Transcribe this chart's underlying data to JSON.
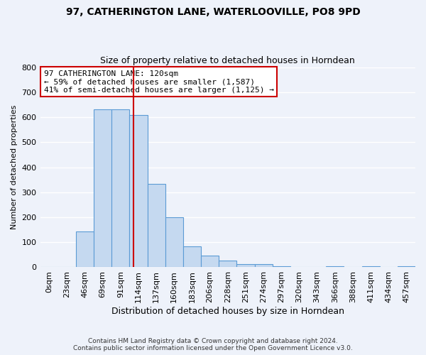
{
  "title": "97, CATHERINGTON LANE, WATERLOOVILLE, PO8 9PD",
  "subtitle": "Size of property relative to detached houses in Horndean",
  "xlabel": "Distribution of detached houses by size in Horndean",
  "ylabel": "Number of detached properties",
  "bar_color": "#c5d9f0",
  "bar_edge_color": "#5b9bd5",
  "background_color": "#eef2fa",
  "grid_color": "#ffffff",
  "categories": [
    "0sqm",
    "23sqm",
    "46sqm",
    "69sqm",
    "91sqm",
    "114sqm",
    "137sqm",
    "160sqm",
    "183sqm",
    "206sqm",
    "228sqm",
    "251sqm",
    "274sqm",
    "297sqm",
    "320sqm",
    "343sqm",
    "366sqm",
    "388sqm",
    "411sqm",
    "434sqm",
    "457sqm"
  ],
  "bar_values": [
    2,
    2,
    143,
    632,
    630,
    610,
    333,
    200,
    84,
    46,
    27,
    12,
    12,
    3,
    0,
    0,
    5,
    0,
    5,
    0,
    3
  ],
  "ylim": [
    0,
    800
  ],
  "yticks": [
    0,
    100,
    200,
    300,
    400,
    500,
    600,
    700,
    800
  ],
  "property_line_label": "97 CATHERINGTON LANE: 120sqm",
  "annotation_line1": "← 59% of detached houses are smaller (1,587)",
  "annotation_line2": "41% of semi-detached houses are larger (1,125) →",
  "annotation_box_color": "#ffffff",
  "annotation_box_edge": "#cc0000",
  "vline_color": "#cc0000",
  "footer_line1": "Contains HM Land Registry data © Crown copyright and database right 2024.",
  "footer_line2": "Contains public sector information licensed under the Open Government Licence v3.0.",
  "vline_pos": 5.217
}
